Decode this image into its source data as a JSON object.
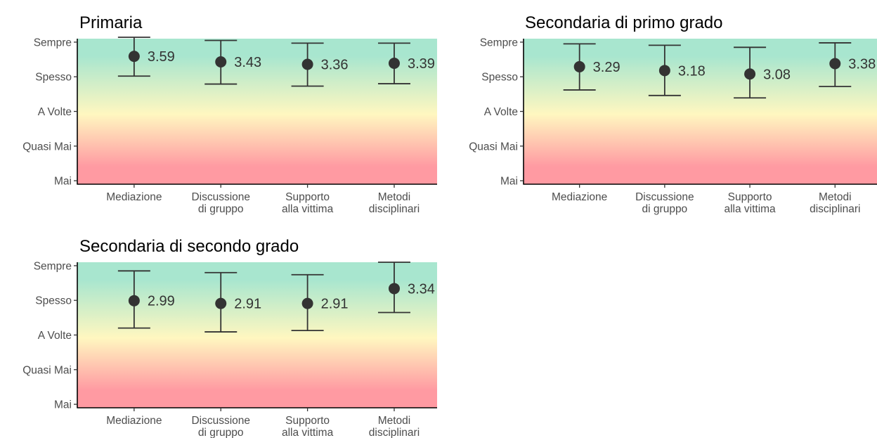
{
  "chart_data": [
    {
      "type": "scatter",
      "title": "Primaria",
      "categories": [
        "Mediazione",
        "Discussione di gruppo",
        "Supporto alla vittima",
        "Metodi disciplinari"
      ],
      "category_lines": [
        [
          "Mediazione"
        ],
        [
          "Discussione",
          "di gruppo"
        ],
        [
          "Supporto",
          "alla vittima"
        ],
        [
          "Metodi",
          "disciplinari"
        ]
      ],
      "y_ticks": [
        {
          "value": 0,
          "label": "Mai"
        },
        {
          "value": 1,
          "label": "Quasi Mai"
        },
        {
          "value": 2,
          "label": "A Volte"
        },
        {
          "value": 3,
          "label": "Spesso"
        },
        {
          "value": 4,
          "label": "Sempre"
        }
      ],
      "ylim": [
        -0.1,
        4.1
      ],
      "series": [
        {
          "values": [
            3.59,
            3.43,
            3.36,
            3.39
          ],
          "lower": [
            3.02,
            2.79,
            2.73,
            2.8
          ],
          "upper": [
            4.14,
            4.05,
            3.97,
            3.97
          ]
        }
      ],
      "value_labels": [
        "3.59",
        "3.43",
        "3.36",
        "3.39"
      ],
      "background_gradient": [
        "#ff9aa2",
        "#fff7c0",
        "#a8e6cf"
      ],
      "grid": false,
      "legend": "none"
    },
    {
      "type": "scatter",
      "title": "Secondaria di primo grado",
      "categories": [
        "Mediazione",
        "Discussione di gruppo",
        "Supporto alla vittima",
        "Metodi disciplinari"
      ],
      "category_lines": [
        [
          "Mediazione"
        ],
        [
          "Discussione",
          "di gruppo"
        ],
        [
          "Supporto",
          "alla vittima"
        ],
        [
          "Metodi",
          "disciplinari"
        ]
      ],
      "y_ticks": [
        {
          "value": 0,
          "label": "Mai"
        },
        {
          "value": 1,
          "label": "Quasi Mai"
        },
        {
          "value": 2,
          "label": "A Volte"
        },
        {
          "value": 3,
          "label": "Spesso"
        },
        {
          "value": 4,
          "label": "Sempre"
        }
      ],
      "ylim": [
        -0.1,
        4.1
      ],
      "series": [
        {
          "values": [
            3.29,
            3.18,
            3.08,
            3.38
          ],
          "lower": [
            2.62,
            2.46,
            2.39,
            2.72
          ],
          "upper": [
            3.95,
            3.91,
            3.85,
            3.98
          ]
        }
      ],
      "value_labels": [
        "3.29",
        "3.18",
        "3.08",
        "3.38"
      ],
      "background_gradient": [
        "#ff9aa2",
        "#fff7c0",
        "#a8e6cf"
      ],
      "grid": false,
      "legend": "none"
    },
    {
      "type": "scatter",
      "title": "Secondaria di secondo grado",
      "categories": [
        "Mediazione",
        "Discussione di gruppo",
        "Supporto alla vittima",
        "Metodi disciplinari"
      ],
      "category_lines": [
        [
          "Mediazione"
        ],
        [
          "Discussione",
          "di gruppo"
        ],
        [
          "Supporto",
          "alla vittima"
        ],
        [
          "Metodi",
          "disciplinari"
        ]
      ],
      "y_ticks": [
        {
          "value": 0,
          "label": "Mai"
        },
        {
          "value": 1,
          "label": "Quasi Mai"
        },
        {
          "value": 2,
          "label": "A Volte"
        },
        {
          "value": 3,
          "label": "Spesso"
        },
        {
          "value": 4,
          "label": "Sempre"
        }
      ],
      "ylim": [
        -0.1,
        4.1
      ],
      "series": [
        {
          "values": [
            2.99,
            2.91,
            2.91,
            3.34
          ],
          "lower": [
            2.2,
            2.09,
            2.13,
            2.65
          ],
          "upper": [
            3.85,
            3.8,
            3.74,
            4.1
          ]
        }
      ],
      "value_labels": [
        "2.99",
        "2.91",
        "2.91",
        "3.34"
      ],
      "background_gradient": [
        "#ff9aa2",
        "#fff7c0",
        "#a8e6cf"
      ],
      "grid": false,
      "legend": "none"
    }
  ]
}
